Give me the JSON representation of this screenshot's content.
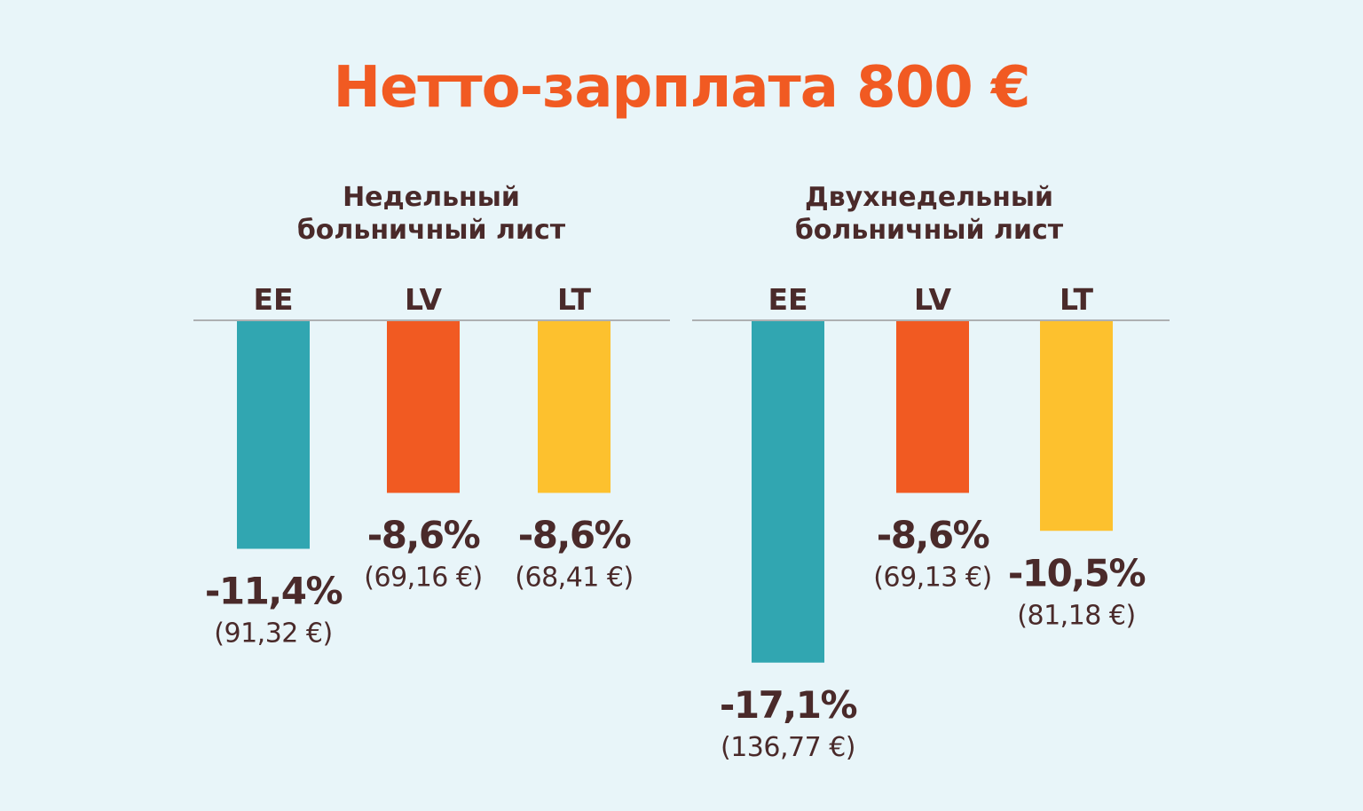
{
  "title": "Нетто-зарплата 800 €",
  "colors": {
    "background": "#e8f5f9",
    "title": "#f15a22",
    "text": "#4a2a2a",
    "EE": "#31a6b1",
    "LV": "#f15a22",
    "LT": "#fdc12e",
    "baseline": "#9a9a9a"
  },
  "chart_data": [
    {
      "type": "bar",
      "title": [
        "Недельный",
        "больничный лист"
      ],
      "categories": [
        "EE",
        "LV",
        "LT"
      ],
      "values": [
        -11.4,
        -8.6,
        -8.6
      ],
      "value_labels": [
        "-11,4%",
        "-8,6%",
        "-8,6%"
      ],
      "amount_labels": [
        "(91,32 €)",
        "(69,16 €)",
        "(68,41 €)"
      ],
      "amounts_eur": [
        91.32,
        69.16,
        68.41
      ]
    },
    {
      "type": "bar",
      "title": [
        "Двухнедельный",
        "больничный лист"
      ],
      "categories": [
        "EE",
        "LV",
        "LT"
      ],
      "values": [
        -17.1,
        -8.6,
        -10.5
      ],
      "value_labels": [
        "-17,1%",
        "-8,6%",
        "-10,5%"
      ],
      "amount_labels": [
        "(136,77 €)",
        "(69,13 €)",
        "(81,18 €)"
      ],
      "amounts_eur": [
        136.77,
        69.13,
        81.18
      ]
    }
  ]
}
